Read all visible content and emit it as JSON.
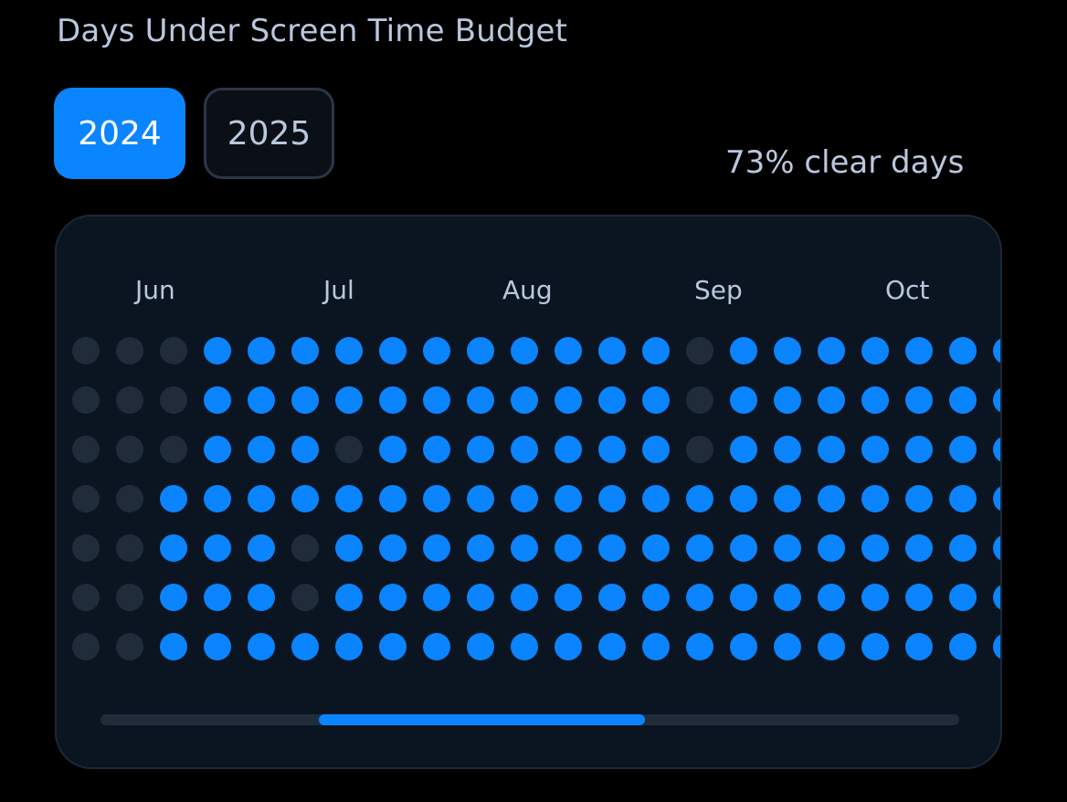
{
  "header": {
    "title": "Days Under Screen Time Budget"
  },
  "year_tabs": [
    {
      "label": "2024",
      "selected": true
    },
    {
      "label": "2025",
      "selected": false
    }
  ],
  "summary": {
    "text": "73% clear days"
  },
  "calendar": {
    "months": [
      "Jun",
      "Jul",
      "Aug",
      "Sep",
      "Oct"
    ],
    "rows": 7,
    "weeks": [
      [
        0,
        0,
        0,
        0,
        0,
        0,
        0
      ],
      [
        0,
        0,
        0,
        0,
        0,
        0,
        0
      ],
      [
        0,
        0,
        0,
        1,
        1,
        1,
        1
      ],
      [
        1,
        1,
        1,
        1,
        1,
        1,
        1
      ],
      [
        1,
        1,
        1,
        1,
        1,
        1,
        1
      ],
      [
        1,
        1,
        1,
        1,
        0,
        0,
        1
      ],
      [
        1,
        1,
        0,
        1,
        1,
        1,
        1
      ],
      [
        1,
        1,
        1,
        1,
        1,
        1,
        1
      ],
      [
        1,
        1,
        1,
        1,
        1,
        1,
        1
      ],
      [
        1,
        1,
        1,
        1,
        1,
        1,
        1
      ],
      [
        1,
        1,
        1,
        1,
        1,
        1,
        1
      ],
      [
        1,
        1,
        1,
        1,
        1,
        1,
        1
      ],
      [
        1,
        1,
        1,
        1,
        1,
        1,
        1
      ],
      [
        1,
        1,
        1,
        1,
        1,
        1,
        1
      ],
      [
        0,
        0,
        0,
        1,
        1,
        1,
        1
      ],
      [
        1,
        1,
        1,
        1,
        1,
        1,
        1
      ],
      [
        1,
        1,
        1,
        1,
        1,
        1,
        1
      ],
      [
        1,
        1,
        1,
        1,
        1,
        1,
        1
      ],
      [
        1,
        1,
        1,
        1,
        1,
        1,
        1
      ],
      [
        1,
        1,
        1,
        1,
        1,
        1,
        1
      ],
      [
        1,
        1,
        1,
        1,
        1,
        1,
        1
      ],
      [
        1,
        1,
        1,
        1,
        1,
        1,
        1
      ]
    ],
    "scroll_position": 0.41,
    "scroll_visible_fraction": 0.38
  },
  "colors": {
    "accent": "#0a84ff",
    "inactive_dot": "#212c3a",
    "card_background": "#0b1522",
    "text_secondary": "#b9c8de"
  }
}
